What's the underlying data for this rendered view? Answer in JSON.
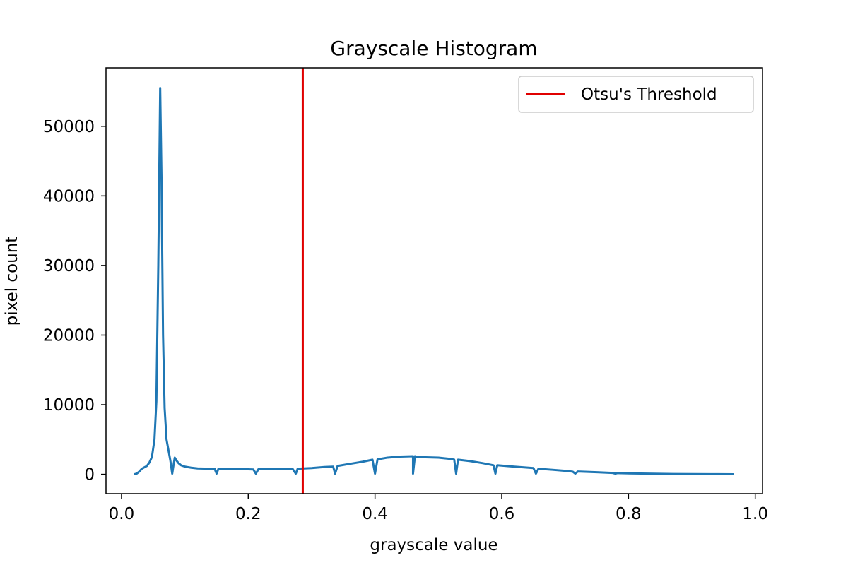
{
  "chart_data": {
    "type": "line",
    "title": "Grayscale Histogram",
    "xlabel": "grayscale value",
    "ylabel": "pixel count",
    "xlim": [
      -0.0245,
      1.0115
    ],
    "ylim": [
      -2780,
      58400
    ],
    "xticks": [
      0.0,
      0.2,
      0.4,
      0.6,
      0.8,
      1.0
    ],
    "xtick_labels": [
      "0.0",
      "0.2",
      "0.4",
      "0.6",
      "0.8",
      "1.0"
    ],
    "yticks": [
      0,
      10000,
      20000,
      30000,
      40000,
      50000
    ],
    "ytick_labels": [
      "0",
      "10000",
      "20000",
      "30000",
      "40000",
      "50000"
    ],
    "grid": false,
    "legend": {
      "position": "top-right",
      "entries": [
        "Otsu's Threshold"
      ]
    },
    "threshold": {
      "name": "Otsu's Threshold",
      "x": 0.286,
      "color": "#e00000"
    },
    "series": [
      {
        "color": "#1f77b4",
        "x": [
          0.02,
          0.024,
          0.028,
          0.032,
          0.036,
          0.04,
          0.044,
          0.048,
          0.052,
          0.055,
          0.058,
          0.061,
          0.063,
          0.0655,
          0.068,
          0.071,
          0.074,
          0.077,
          0.08,
          0.082,
          0.084,
          0.0865,
          0.09,
          0.094,
          0.1,
          0.11,
          0.12,
          0.13,
          0.14,
          0.147,
          0.15,
          0.153,
          0.16,
          0.18,
          0.2,
          0.208,
          0.212,
          0.216,
          0.23,
          0.25,
          0.27,
          0.275,
          0.278,
          0.282,
          0.3,
          0.32,
          0.334,
          0.337,
          0.341,
          0.36,
          0.38,
          0.396,
          0.4,
          0.404,
          0.42,
          0.44,
          0.46,
          0.46,
          0.463,
          0.466,
          0.48,
          0.5,
          0.52,
          0.525,
          0.528,
          0.531,
          0.55,
          0.57,
          0.587,
          0.59,
          0.593,
          0.62,
          0.65,
          0.654,
          0.658,
          0.68,
          0.7,
          0.712,
          0.716,
          0.72,
          0.75,
          0.775,
          0.779,
          0.783,
          0.81,
          0.84,
          0.87,
          0.9,
          0.93,
          0.966
        ],
        "y": [
          0,
          100,
          400,
          800,
          1000,
          1200,
          1700,
          2500,
          5000,
          10500,
          30000,
          55500,
          43000,
          20000,
          9500,
          5000,
          3500,
          2000,
          100,
          1300,
          2400,
          2000,
          1600,
          1300,
          1100,
          950,
          850,
          820,
          800,
          780,
          100,
          800,
          780,
          740,
          720,
          700,
          100,
          730,
          740,
          760,
          780,
          100,
          800,
          820,
          900,
          1050,
          1100,
          100,
          1200,
          1500,
          1800,
          2100,
          100,
          2150,
          2400,
          2550,
          2600,
          100,
          2600,
          2500,
          2450,
          2400,
          2200,
          2100,
          100,
          2100,
          1900,
          1600,
          1300,
          100,
          1300,
          1100,
          900,
          100,
          800,
          650,
          500,
          380,
          100,
          400,
          300,
          200,
          100,
          180,
          120,
          80,
          50,
          30,
          20,
          10
        ]
      }
    ]
  }
}
